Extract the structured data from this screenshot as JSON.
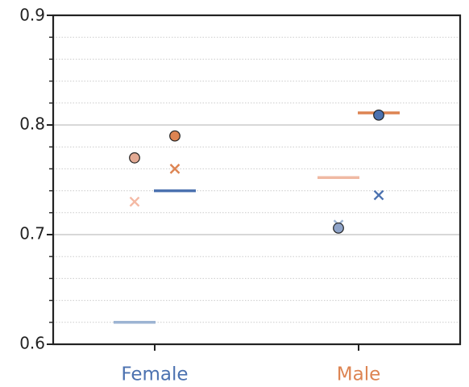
{
  "chart_data": {
    "type": "scatter",
    "title": "",
    "xlabel": "",
    "ylabel": "",
    "categories": [
      "Female",
      "Male"
    ],
    "category_colors": [
      "#4c72b0",
      "#dd8452"
    ],
    "ylim": [
      0.6,
      0.9
    ],
    "yticks": [
      "0.6",
      "0.7",
      "0.8",
      "0.9"
    ],
    "major_grid": [
      0.7,
      0.8
    ],
    "minor_step": 0.02,
    "grid": true,
    "legend": "none",
    "series": [
      {
        "marker": "dash",
        "color": "#9db4d3",
        "values": [
          0.62,
          null
        ]
      },
      {
        "marker": "dash",
        "color": "#f0b9a3",
        "values": [
          null,
          0.752
        ]
      },
      {
        "marker": "dash",
        "color": "#4c72b0",
        "values": [
          0.74,
          null
        ]
      },
      {
        "marker": "dash",
        "color": "#dd8452",
        "values": [
          null,
          0.811
        ]
      },
      {
        "marker": "circle",
        "color": "#e3aa94",
        "values": [
          0.77,
          null
        ]
      },
      {
        "marker": "circle",
        "color": "#dd8452",
        "values": [
          0.79,
          null
        ]
      },
      {
        "marker": "circle",
        "color": "#8ea3c8",
        "values": [
          null,
          0.706
        ]
      },
      {
        "marker": "circle",
        "color": "#4c72b0",
        "values": [
          null,
          0.809
        ]
      },
      {
        "marker": "x",
        "color": "#f4b9a4",
        "values": [
          0.73,
          null
        ]
      },
      {
        "marker": "x",
        "color": "#dd8452",
        "values": [
          0.76,
          null
        ]
      },
      {
        "marker": "x",
        "color": "#9db4d3",
        "values": [
          null,
          0.709
        ]
      },
      {
        "marker": "x",
        "color": "#4c72b0",
        "values": [
          null,
          0.736
        ]
      }
    ]
  }
}
